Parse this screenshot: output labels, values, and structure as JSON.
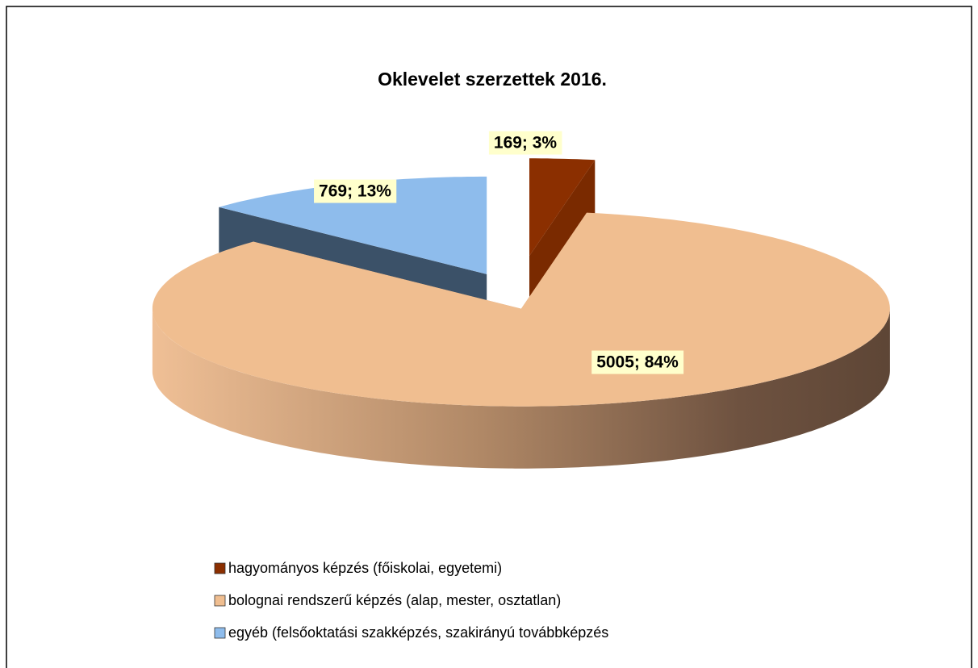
{
  "chart_data": {
    "type": "pie3d",
    "title": "Oklevelet szerzettek 2016.",
    "categories": [
      "hagyományos képzés (főiskolai, egyetemi)",
      "bolognai rendszerű képzés (alap, mester, osztatlan)",
      "egyéb (felsőoktatási szakképzés, szakirányú továbbképzés"
    ],
    "values": [
      169,
      5005,
      769
    ],
    "value_labels": [
      "169; 3%",
      "5005; 84%",
      "769; 13%"
    ],
    "colors": [
      "#8b2f00",
      "#f0be90",
      "#8ebcec"
    ],
    "legend": "bottom"
  }
}
